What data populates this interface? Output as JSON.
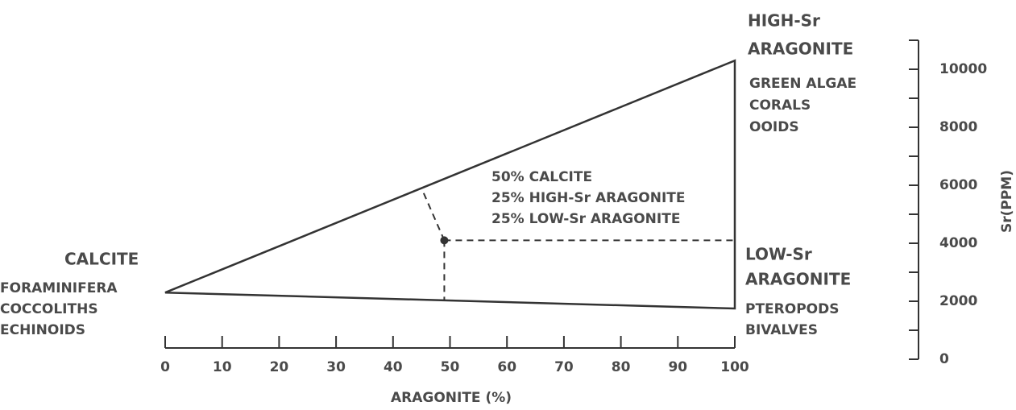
{
  "chart_data": {
    "type": "mixing-triangle",
    "xlabel": "ARAGONITE (%)",
    "ylabel": "Sr(PPM)",
    "xlim": [
      0,
      100
    ],
    "xticks": [
      0,
      10,
      20,
      30,
      40,
      50,
      60,
      70,
      80,
      90,
      100
    ],
    "ylim": [
      0,
      11000
    ],
    "yticks": [
      0,
      2000,
      4000,
      6000,
      8000,
      10000
    ],
    "yminor_ticks": [
      1000,
      3000,
      5000,
      7000,
      9000,
      11000
    ],
    "color": "#333333",
    "vertices": [
      {
        "name": [
          "CALCITE"
        ],
        "members": [
          "FORAMINIFERA",
          "COCCOLITHS",
          "ECHINOIDS"
        ],
        "x": 0,
        "y": 2300
      },
      {
        "name": [
          "HIGH-Sr",
          "ARAGONITE"
        ],
        "members": [
          "GREEN ALGAE",
          "CORALS",
          "OOIDS"
        ],
        "x": 100,
        "y": 10300
      },
      {
        "name": [
          "LOW-Sr",
          "ARAGONITE"
        ],
        "members": [
          "PTEROPODS",
          "BIVALVES"
        ],
        "x": 100,
        "y": 1750
      }
    ],
    "mixture": {
      "lines": [
        "50% CALCITE",
        "25% HIGH-Sr ARAGONITE",
        "25% LOW-Sr ARAGONITE"
      ],
      "x": 49,
      "y": 4100,
      "upper_guide_x": 45
    }
  }
}
